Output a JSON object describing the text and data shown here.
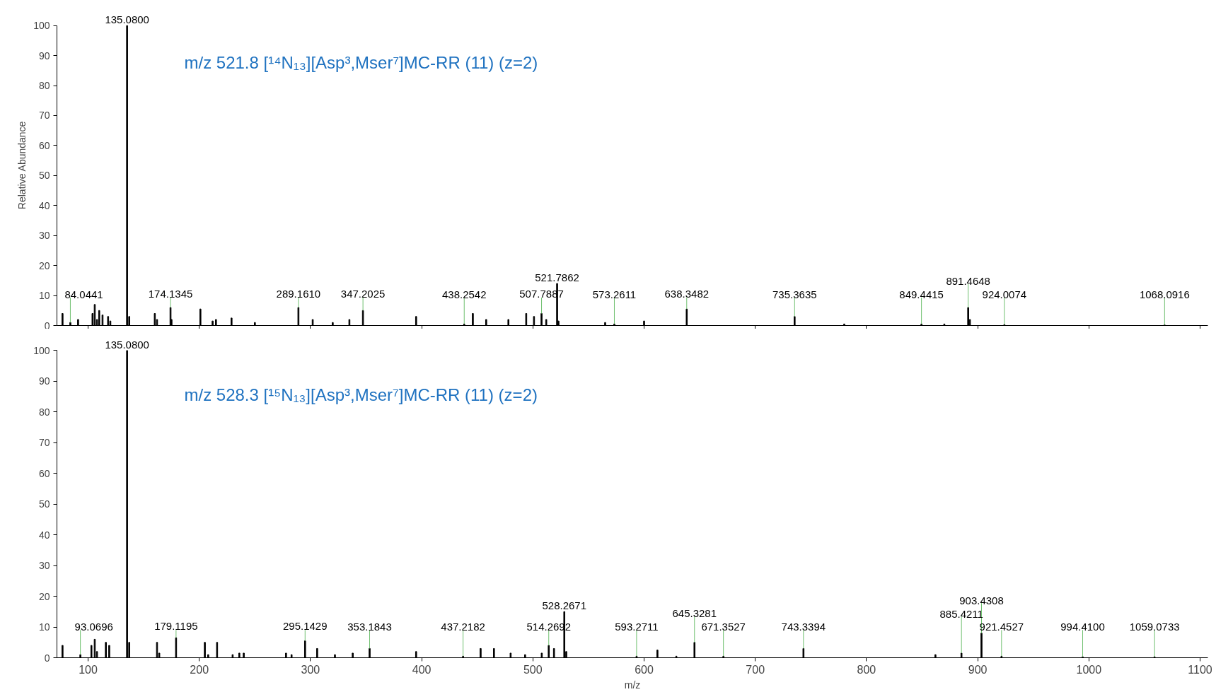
{
  "chart_data": [
    {
      "type": "bar",
      "title": "m/z 521.8 [¹⁴N₁₃][Asp³,Mser⁷]MC-RR (11) (z=2)",
      "ylabel": "Relative Abundance",
      "color": "#000000",
      "x": [
        77,
        84.0441,
        91,
        104,
        106,
        108,
        110,
        113,
        118,
        120,
        135.08,
        137,
        160,
        162,
        174.1345,
        175,
        201,
        212,
        215,
        229,
        250,
        289.161,
        302,
        320,
        335,
        347.2025,
        395,
        438.2542,
        446,
        458,
        478,
        494,
        501,
        507.7887,
        512,
        521.7862,
        523,
        565,
        573.2611,
        600,
        638.3482,
        735.3635,
        780,
        849.4415,
        870,
        891.4648,
        893,
        924.0074,
        1068.0916
      ],
      "values": [
        4,
        1,
        2,
        4,
        7,
        2,
        5,
        3.5,
        3,
        1.5,
        100,
        3,
        4,
        2,
        6,
        2,
        5.5,
        1.5,
        2,
        2.5,
        1,
        6,
        2,
        1,
        2,
        5,
        3,
        0.5,
        4,
        2,
        2,
        4,
        3,
        4,
        2,
        14,
        1.5,
        1,
        0.5,
        1.5,
        5.5,
        3,
        0.5,
        0.5,
        0.5,
        6,
        2,
        0.3,
        0.2
      ],
      "annotations": [
        {
          "text": "135.0800",
          "x": 135.08,
          "y": 100
        },
        {
          "text": "84.0441",
          "x": 84.0441,
          "y": 1
        },
        {
          "text": "174.1345",
          "x": 174.1345,
          "y": 6
        },
        {
          "text": "289.1610",
          "x": 289.161,
          "y": 6
        },
        {
          "text": "347.2025",
          "x": 347.2025,
          "y": 5
        },
        {
          "text": "438.2542",
          "x": 438.2542,
          "y": 0.5
        },
        {
          "text": "507.7887",
          "x": 507.7887,
          "y": 4
        },
        {
          "text": "521.7862",
          "x": 521.7862,
          "y": 14
        },
        {
          "text": "573.2611",
          "x": 573.2611,
          "y": 0.5
        },
        {
          "text": "638.3482",
          "x": 638.3482,
          "y": 5.5
        },
        {
          "text": "735.3635",
          "x": 735.3635,
          "y": 3
        },
        {
          "text": "849.4415",
          "x": 849.4415,
          "y": 0.5
        },
        {
          "text": "891.4648",
          "x": 891.4648,
          "y": 6
        },
        {
          "text": "924.0074",
          "x": 924.0074,
          "y": 0.3
        },
        {
          "text": "1068.0916",
          "x": 1068.0916,
          "y": 0.2
        }
      ],
      "xlim": [
        72,
        1107
      ],
      "xticks": [
        100,
        200,
        300,
        400,
        500,
        600,
        700,
        800,
        900,
        1000,
        1100
      ],
      "ylim": [
        0,
        100
      ],
      "yticks": [
        0,
        10,
        20,
        30,
        40,
        50,
        60,
        70,
        80,
        90,
        100
      ],
      "tick_labels": "y",
      "grid": false
    },
    {
      "type": "bar",
      "title": "m/z 528.3 [¹⁵N₁₃][Asp³,Mser⁷]MC-RR (11) (z=2)",
      "xlabel": "m/z",
      "color": "#000000",
      "x": [
        77,
        93.0696,
        103,
        106,
        108,
        116,
        119,
        135.08,
        137,
        162,
        164,
        179.1195,
        205,
        208,
        216,
        230,
        236,
        240,
        278,
        283,
        295.1429,
        306,
        322,
        338,
        353.1843,
        395,
        437.2182,
        453,
        465,
        480,
        493,
        508,
        514.2692,
        519,
        528.2671,
        530,
        593.2711,
        612,
        629,
        645.3281,
        671.3527,
        743.3394,
        862,
        885.4211,
        903.4308,
        921.4527,
        994.41,
        1059.0733
      ],
      "values": [
        4,
        1,
        4,
        6,
        2,
        5,
        4,
        100,
        5,
        5,
        1.5,
        6.5,
        5,
        1,
        5,
        1,
        1.5,
        1.5,
        1.5,
        1,
        5.5,
        3,
        1,
        1.5,
        3,
        2,
        0.5,
        3,
        3,
        1.5,
        1,
        1.5,
        4,
        3,
        15,
        2,
        0.5,
        2.5,
        0.5,
        5,
        0.5,
        3,
        1,
        1.5,
        8,
        0.5,
        0.3,
        0.3
      ],
      "annotations": [
        {
          "text": "135.0800",
          "x": 135.08,
          "y": 100
        },
        {
          "text": "93.0696",
          "x": 93.0696,
          "y": 1
        },
        {
          "text": "179.1195",
          "x": 179.1195,
          "y": 6.5
        },
        {
          "text": "295.1429",
          "x": 295.1429,
          "y": 5.5
        },
        {
          "text": "353.1843",
          "x": 353.1843,
          "y": 3
        },
        {
          "text": "437.2182",
          "x": 437.2182,
          "y": 0.5
        },
        {
          "text": "514.2692",
          "x": 514.2692,
          "y": 4
        },
        {
          "text": "528.2671",
          "x": 528.2671,
          "y": 15
        },
        {
          "text": "593.2711",
          "x": 593.2711,
          "y": 0.5
        },
        {
          "text": "645.3281",
          "x": 645.3281,
          "y": 5
        },
        {
          "text": "671.3527",
          "x": 671.3527,
          "y": 0.5
        },
        {
          "text": "743.3394",
          "x": 743.3394,
          "y": 3
        },
        {
          "text": "885.4211",
          "x": 885.4211,
          "y": 1.5
        },
        {
          "text": "903.4308",
          "x": 903.4308,
          "y": 8
        },
        {
          "text": "921.4527",
          "x": 921.4527,
          "y": 0.5
        },
        {
          "text": "994.4100",
          "x": 994.41,
          "y": 0.3
        },
        {
          "text": "1059.0733",
          "x": 1059.0733,
          "y": 0.3
        }
      ],
      "xlim": [
        72,
        1107
      ],
      "xticks": [
        100,
        200,
        300,
        400,
        500,
        600,
        700,
        800,
        900,
        1000,
        1100
      ],
      "ylim": [
        0,
        100
      ],
      "yticks": [
        0,
        10,
        20,
        30,
        40,
        50,
        60,
        70,
        80,
        90,
        100
      ],
      "grid": false
    }
  ]
}
